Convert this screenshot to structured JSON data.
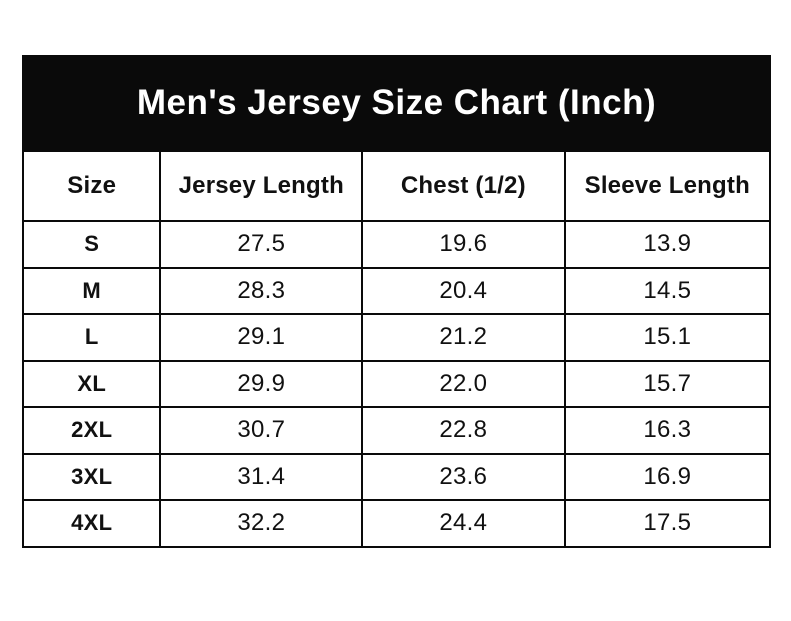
{
  "chart_data": {
    "type": "table",
    "title": "Men's Jersey Size Chart (Inch)",
    "columns": [
      "Size",
      "Jersey Length",
      "Chest (1/2)",
      "Sleeve Length"
    ],
    "rows": [
      [
        "S",
        "27.5",
        "19.6",
        "13.9"
      ],
      [
        "M",
        "28.3",
        "20.4",
        "14.5"
      ],
      [
        "L",
        "29.1",
        "21.2",
        "15.1"
      ],
      [
        "XL",
        "29.9",
        "22.0",
        "15.7"
      ],
      [
        "2XL",
        "30.7",
        "22.8",
        "16.3"
      ],
      [
        "3XL",
        "31.4",
        "23.6",
        "16.9"
      ],
      [
        "4XL",
        "32.2",
        "24.4",
        "17.5"
      ]
    ]
  },
  "colors": {
    "band_background": "#0a0a0a",
    "band_text": "#ffffff",
    "border": "#0a0a0a",
    "cell_background": "#ffffff",
    "cell_text": "#111111"
  }
}
